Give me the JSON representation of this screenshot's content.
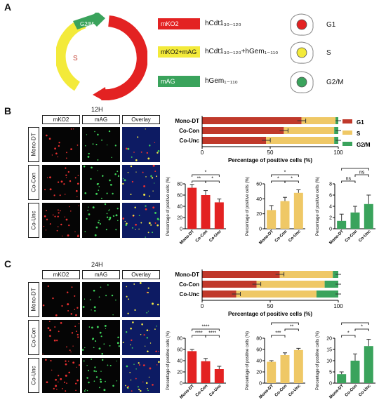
{
  "panels": {
    "a": "A",
    "b": "B",
    "c": "C"
  },
  "cycle": {
    "phases": [
      {
        "label": "G2/M",
        "color": "#3aa35c"
      },
      {
        "label": "S",
        "color": "#f3ea3a"
      },
      {
        "label": "G1",
        "color": "#e32222"
      }
    ]
  },
  "legend": [
    {
      "box": "mKO2",
      "box_color": "#e32222",
      "text": "hCdt1₃₀₋₁₂₀"
    },
    {
      "box": "mKO2+mAG",
      "box_color": "#f3ea3a",
      "text": "hCdt1₃₀₋₁₂₀+hGem₁₋₁₁₀"
    },
    {
      "box": "mAG",
      "box_color": "#3aa35c",
      "text": "hGem₁₋₁₁₀"
    }
  ],
  "cells": [
    {
      "label": "G1",
      "dot": "#e32222"
    },
    {
      "label": "S",
      "dot": "#f3ea3a"
    },
    {
      "label": "G2/M",
      "dot": "#3aa35c"
    }
  ],
  "micro_headers": [
    "mKO2",
    "mAG",
    "Overlay"
  ],
  "row_labels": [
    "Mono-DT",
    "Co-Con",
    "Co-Unc"
  ],
  "times": {
    "b": "12H",
    "c": "24H"
  },
  "phase_legend": [
    {
      "label": "G1",
      "color": "#c0392b"
    },
    {
      "label": "S",
      "color": "#efc866"
    },
    {
      "label": "G2/M",
      "color": "#3aa35c"
    }
  ],
  "chart_data": [
    {
      "type": "bar",
      "id": "b-stacked",
      "orientation": "horizontal-stacked",
      "categories": [
        "Mono-DT",
        "Co-Con",
        "Co-Unc"
      ],
      "series": [
        {
          "name": "G1",
          "values": [
            73,
            60,
            47
          ]
        },
        {
          "name": "S",
          "values": [
            25,
            37,
            50
          ]
        },
        {
          "name": "G2/M",
          "values": [
            2,
            3,
            3
          ]
        }
      ],
      "xlabel": "Percentage of positive cells (%)",
      "xlim": [
        0,
        100
      ],
      "ticks": [
        "0",
        "50",
        "100"
      ]
    },
    {
      "type": "bar",
      "id": "b-g1",
      "categories": [
        "Mono-DT",
        "Co-Con",
        "Co-Unc"
      ],
      "values": [
        73,
        60,
        47
      ],
      "errors": [
        6,
        8,
        6
      ],
      "ylabel": "Percentage of positive cells (%)",
      "ylim": [
        0,
        80
      ],
      "ticks": [
        "0",
        "20",
        "40",
        "60",
        "80"
      ],
      "color": "#e32222",
      "sig": [
        {
          "from": 0,
          "to": 1,
          "label": "**",
          "level": 0
        },
        {
          "from": 1,
          "to": 2,
          "label": "*",
          "level": 0
        },
        {
          "from": 0,
          "to": 2,
          "label": "*",
          "level": 1
        }
      ]
    },
    {
      "type": "bar",
      "id": "b-s",
      "categories": [
        "Mono-DT",
        "Co-Con",
        "Co-Unc"
      ],
      "values": [
        25,
        37,
        48
      ],
      "errors": [
        6,
        5,
        4
      ],
      "ylabel": "Percentage of positive cells (%)",
      "ylim": [
        0,
        60
      ],
      "ticks": [
        "0",
        "20",
        "40",
        "60"
      ],
      "color": "#efc866",
      "sig": [
        {
          "from": 0,
          "to": 1,
          "label": "*",
          "level": 0
        },
        {
          "from": 1,
          "to": 2,
          "label": "*",
          "level": 0
        },
        {
          "from": 0,
          "to": 2,
          "label": "*",
          "level": 1
        }
      ]
    },
    {
      "type": "bar",
      "id": "b-g2m",
      "categories": [
        "Mono-DT",
        "Co-Con",
        "Co-Unc"
      ],
      "values": [
        1.4,
        2.9,
        4.4
      ],
      "errors": [
        1.2,
        1.1,
        1.6
      ],
      "ylabel": "Percentage of positive cells (%)",
      "ylim": [
        0,
        8
      ],
      "ticks": [
        "0",
        "2",
        "4",
        "6",
        "8"
      ],
      "color": "#3aa35c",
      "sig": [
        {
          "from": 0,
          "to": 1,
          "label": "ns",
          "level": 0
        },
        {
          "from": 1,
          "to": 2,
          "label": "ns",
          "level": 1
        },
        {
          "from": 0,
          "to": 2,
          "label": "*",
          "level": 2
        }
      ]
    },
    {
      "type": "bar",
      "id": "c-stacked",
      "orientation": "horizontal-stacked",
      "categories": [
        "Mono-DT",
        "Co-Con",
        "Co-Unc"
      ],
      "series": [
        {
          "name": "G1",
          "values": [
            57,
            40,
            25
          ]
        },
        {
          "name": "S",
          "values": [
            39,
            50,
            59
          ]
        },
        {
          "name": "G2/M",
          "values": [
            4,
            10,
            16
          ]
        }
      ],
      "xlabel": "Percentage of positive cells (%)",
      "xlim": [
        0,
        100
      ],
      "ticks": [
        "0",
        "50",
        "100"
      ]
    },
    {
      "type": "bar",
      "id": "c-g1",
      "categories": [
        "Mono-DT",
        "Co-Con",
        "Co-Unc"
      ],
      "values": [
        57,
        39,
        25
      ],
      "errors": [
        3,
        5,
        5
      ],
      "ylabel": "Percentage of positive cells (%)",
      "ylim": [
        0,
        80
      ],
      "ticks": [
        "0",
        "20",
        "40",
        "60",
        "80"
      ],
      "color": "#e32222",
      "sig": [
        {
          "from": 0,
          "to": 1,
          "label": "****",
          "level": 0
        },
        {
          "from": 1,
          "to": 2,
          "label": "****",
          "level": 0
        },
        {
          "from": 0,
          "to": 2,
          "label": "****",
          "level": 1
        }
      ]
    },
    {
      "type": "bar",
      "id": "c-s",
      "categories": [
        "Mono-DT",
        "Co-Con",
        "Co-Unc"
      ],
      "values": [
        38,
        50,
        59
      ],
      "errors": [
        2,
        4,
        3
      ],
      "ylabel": "Percentage of positive cells (%)",
      "ylim": [
        0,
        80
      ],
      "ticks": [
        "0",
        "20",
        "40",
        "60",
        "80"
      ],
      "color": "#efc866",
      "sig": [
        {
          "from": 0,
          "to": 1,
          "label": "***",
          "level": 0
        },
        {
          "from": 1,
          "to": 2,
          "label": "**",
          "level": 1
        },
        {
          "from": 0,
          "to": 2,
          "label": "****",
          "level": 2
        }
      ]
    },
    {
      "type": "bar",
      "id": "c-g2m",
      "categories": [
        "Mono-DT",
        "Co-Con",
        "Co-Unc"
      ],
      "values": [
        4,
        10,
        16.5
      ],
      "errors": [
        1,
        3,
        3
      ],
      "ylabel": "Percentage of positive cells (%)",
      "ylim": [
        0,
        20
      ],
      "ticks": [
        "0",
        "5",
        "10",
        "15",
        "20"
      ],
      "color": "#3aa35c",
      "sig": [
        {
          "from": 0,
          "to": 1,
          "label": "*",
          "level": 0
        },
        {
          "from": 1,
          "to": 2,
          "label": "*",
          "level": 1
        },
        {
          "from": 0,
          "to": 2,
          "label": "****",
          "level": 2
        }
      ]
    }
  ]
}
